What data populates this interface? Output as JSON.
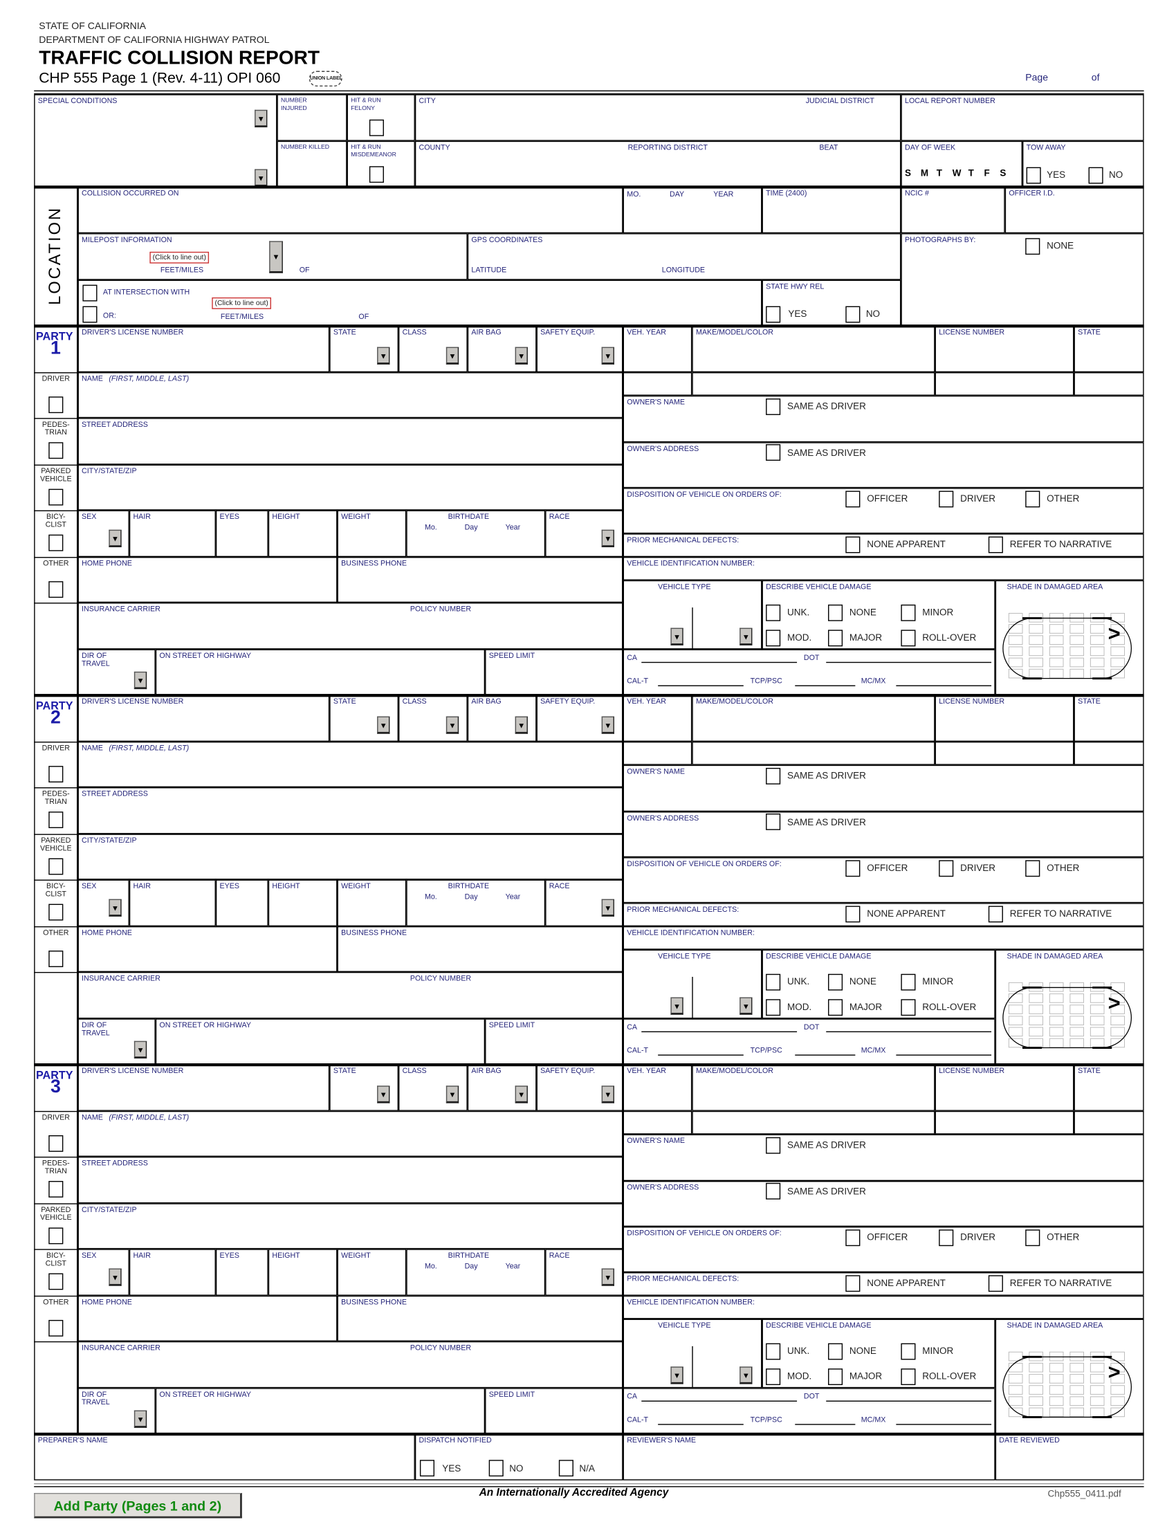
{
  "header": {
    "state": "STATE OF CALIFORNIA",
    "department": "DEPARTMENT OF CALIFORNIA HIGHWAY PATROL",
    "title": "TRAFFIC COLLISION REPORT",
    "form_id": "CHP 555 Page 1 (Rev. 4-11) OPI 060",
    "union_label": "UNION LABEL",
    "page_label": "Page",
    "of_label": "of"
  },
  "top": {
    "special_conditions": "SPECIAL CONDITIONS",
    "number_injured": "NUMBER\nINJURED",
    "hit_run_felony": "HIT & RUN\nFELONY",
    "city": "CITY",
    "judicial_district": "JUDICIAL DISTRICT",
    "local_report_number": "LOCAL REPORT NUMBER",
    "number_killed": "NUMBER KILLED",
    "hit_run_misdemeanor": "HIT & RUN\nMISDEMEANOR",
    "county": "COUNTY",
    "reporting_district": "REPORTING DISTRICT",
    "beat": "BEAT",
    "day_of_week": "DAY OF WEEK",
    "days": [
      "S",
      "M",
      "T",
      "W",
      "T",
      "F",
      "S"
    ],
    "tow_away": "TOW AWAY",
    "yes": "YES",
    "no": "NO"
  },
  "location": {
    "section_label": "LOCATION",
    "collision_occurred_on": "COLLISION OCCURRED ON",
    "mo": "MO.",
    "day": "DAY",
    "year": "YEAR",
    "time": "TIME (2400)",
    "ncic": "NCIC #",
    "officer_id": "OFFICER I.D.",
    "milepost": "MILEPOST INFORMATION",
    "click_to_line_out": "(Click to line out)",
    "feet_miles": "FEET/MILES",
    "of": "OF",
    "gps": "GPS COORDINATES",
    "latitude": "LATITUDE",
    "longitude": "LONGITUDE",
    "photographs_by": "PHOTOGRAPHS BY:",
    "none": "NONE",
    "at_intersection_with": "AT INTERSECTION WITH",
    "or": "OR:",
    "state_hwy_rel": "STATE HWY REL",
    "yes": "YES",
    "no": "NO"
  },
  "party_fields": {
    "roles": [
      "DRIVER",
      "PEDES-\nTRIAN",
      "PARKED\nVEHICLE",
      "BICY-\nCLIST",
      "OTHER"
    ],
    "drivers_license": "DRIVER'S LICENSE NUMBER",
    "state": "STATE",
    "class": "CLASS",
    "air_bag": "AIR BAG",
    "safety_equip": "SAFETY EQUIP.",
    "name": "NAME ",
    "name_hint": "(FIRST, MIDDLE, LAST)",
    "street_address": "STREET ADDRESS",
    "city_state_zip": "CITY/STATE/ZIP",
    "sex": "SEX",
    "hair": "HAIR",
    "eyes": "EYES",
    "height": "HEIGHT",
    "weight": "WEIGHT",
    "birthdate": "BIRTHDATE",
    "bd_mo": "Mo.",
    "bd_day": "Day",
    "bd_year": "Year",
    "race": "RACE",
    "home_phone": "HOME PHONE",
    "business_phone": "BUSINESS PHONE",
    "insurance_carrier": "INSURANCE CARRIER",
    "policy_number": "POLICY NUMBER",
    "dir_of_travel": "DIR OF\nTRAVEL",
    "on_street": "ON STREET OR HIGHWAY",
    "speed_limit": "SPEED LIMIT",
    "veh_year": "VEH. YEAR",
    "make_model_color": "MAKE/MODEL/COLOR",
    "license_number": "LICENSE NUMBER",
    "owners_name": "OWNER'S NAME",
    "owners_address": "OWNER'S ADDRESS",
    "same_as_driver": "SAME AS DRIVER",
    "disposition": "DISPOSITION OF VEHICLE ON ORDERS OF:",
    "officer": "OFFICER",
    "driver": "DRIVER",
    "other": "OTHER",
    "prior_defects": "PRIOR MECHANICAL DEFECTS:",
    "none_apparent": "NONE APPARENT",
    "refer_to_narrative": "REFER TO NARRATIVE",
    "vin": "VEHICLE IDENTIFICATION NUMBER:",
    "vehicle_type": "VEHICLE TYPE",
    "describe_damage": "DESCRIBE VEHICLE DAMAGE",
    "unk": "UNK.",
    "none": "NONE",
    "minor": "MINOR",
    "mod": "MOD.",
    "major": "MAJOR",
    "rollover": "ROLL-OVER",
    "shade_damaged": "SHADE IN DAMAGED AREA",
    "ca": "CA",
    "dot": "DOT",
    "cal_t": "CAL-T",
    "tcp_psc": "TCP/PSC",
    "mc_mx": "MC/MX",
    "direction_glyph": ">"
  },
  "parties": [
    {
      "title": "PARTY",
      "number": "1"
    },
    {
      "title": "PARTY",
      "number": "2"
    },
    {
      "title": "PARTY",
      "number": "3"
    }
  ],
  "footer": {
    "preparers_name": "PREPARER'S NAME",
    "dispatch_notified": "DISPATCH NOTIFIED",
    "yes": "YES",
    "no": "NO",
    "na": "N/A",
    "reviewers_name": "REVIEWER'S NAME",
    "date_reviewed": "DATE REVIEWED",
    "add_party_button": "Add Party (Pages 1 and 2)",
    "tagline": "An Internationally Accredited Agency",
    "file_name": "Chp555_0411.pdf"
  },
  "colors": {
    "label_blue": "#25257a",
    "party_blue": "#1c1ca8",
    "button_green": "#118a11",
    "click_out_border": "#cc3333"
  }
}
